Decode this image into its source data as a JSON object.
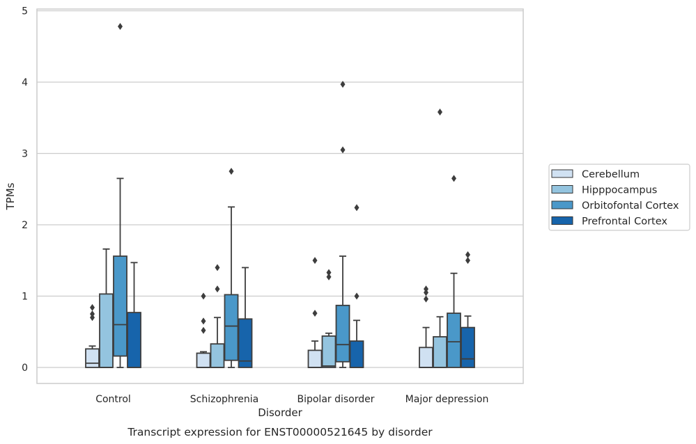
{
  "caption": "Transcript expression for ENST00000521645 by disorder",
  "chart_data": {
    "type": "box",
    "title": "",
    "xlabel": "Disorder",
    "ylabel": "TPMs",
    "ylim": [
      -0.22,
      5.05
    ],
    "yticks": [
      "0",
      "1",
      "2",
      "3",
      "4",
      "5"
    ],
    "grid": "horizontal",
    "legend_position": "right",
    "categories": [
      "Control",
      "Schizophrenia",
      "Bipolar disorder",
      "Major depression"
    ],
    "series": [
      {
        "name": "Cerebellum",
        "color": "#d0e1f2",
        "boxes": [
          {
            "whislo": 0.0,
            "q1": 0.0,
            "med": 0.06,
            "q3": 0.26,
            "whishi": 0.3,
            "fliers": [
              0.7,
              0.75,
              0.84
            ]
          },
          {
            "whislo": 0.0,
            "q1": 0.0,
            "med": 0.0,
            "q3": 0.2,
            "whishi": 0.22,
            "fliers": [
              0.52,
              0.65,
              1.0
            ]
          },
          {
            "whislo": 0.0,
            "q1": 0.0,
            "med": 0.0,
            "q3": 0.24,
            "whishi": 0.37,
            "fliers": [
              0.76,
              1.5
            ]
          },
          {
            "whislo": 0.0,
            "q1": 0.0,
            "med": 0.0,
            "q3": 0.28,
            "whishi": 0.56,
            "fliers": [
              0.96,
              1.05,
              1.1
            ]
          }
        ]
      },
      {
        "name": "Hipppocampus",
        "color": "#94c4df",
        "boxes": [
          {
            "whislo": 0.0,
            "q1": 0.0,
            "med": 0.0,
            "q3": 1.03,
            "whishi": 1.66,
            "fliers": []
          },
          {
            "whislo": 0.0,
            "q1": 0.0,
            "med": 0.0,
            "q3": 0.33,
            "whishi": 0.7,
            "fliers": [
              1.1,
              1.4
            ]
          },
          {
            "whislo": 0.0,
            "q1": 0.0,
            "med": 0.02,
            "q3": 0.44,
            "whishi": 0.48,
            "fliers": [
              1.27,
              1.33
            ]
          },
          {
            "whislo": 0.0,
            "q1": 0.0,
            "med": 0.0,
            "q3": 0.43,
            "whishi": 0.71,
            "fliers": [
              3.58
            ]
          }
        ]
      },
      {
        "name": "Orbitofontal Cortex",
        "color": "#4a98c9",
        "boxes": [
          {
            "whislo": 0.0,
            "q1": 0.16,
            "med": 0.6,
            "q3": 1.56,
            "whishi": 2.65,
            "fliers": [
              4.78
            ]
          },
          {
            "whislo": 0.0,
            "q1": 0.1,
            "med": 0.58,
            "q3": 1.02,
            "whishi": 2.25,
            "fliers": [
              2.75
            ]
          },
          {
            "whislo": 0.0,
            "q1": 0.08,
            "med": 0.32,
            "q3": 0.87,
            "whishi": 1.56,
            "fliers": [
              3.05,
              3.97
            ]
          },
          {
            "whislo": 0.0,
            "q1": 0.0,
            "med": 0.36,
            "q3": 0.76,
            "whishi": 1.32,
            "fliers": [
              2.65
            ]
          }
        ]
      },
      {
        "name": "Prefrontal Cortex",
        "color": "#1764ab",
        "boxes": [
          {
            "whislo": 0.0,
            "q1": 0.0,
            "med": 0.0,
            "q3": 0.77,
            "whishi": 1.47,
            "fliers": []
          },
          {
            "whislo": 0.0,
            "q1": 0.0,
            "med": 0.09,
            "q3": 0.68,
            "whishi": 1.4,
            "fliers": []
          },
          {
            "whislo": 0.0,
            "q1": 0.0,
            "med": 0.0,
            "q3": 0.37,
            "whishi": 0.66,
            "fliers": [
              1.0,
              2.24
            ]
          },
          {
            "whislo": 0.0,
            "q1": 0.0,
            "med": 0.12,
            "q3": 0.56,
            "whishi": 0.72,
            "fliers": [
              1.5,
              1.58
            ]
          }
        ]
      }
    ]
  }
}
